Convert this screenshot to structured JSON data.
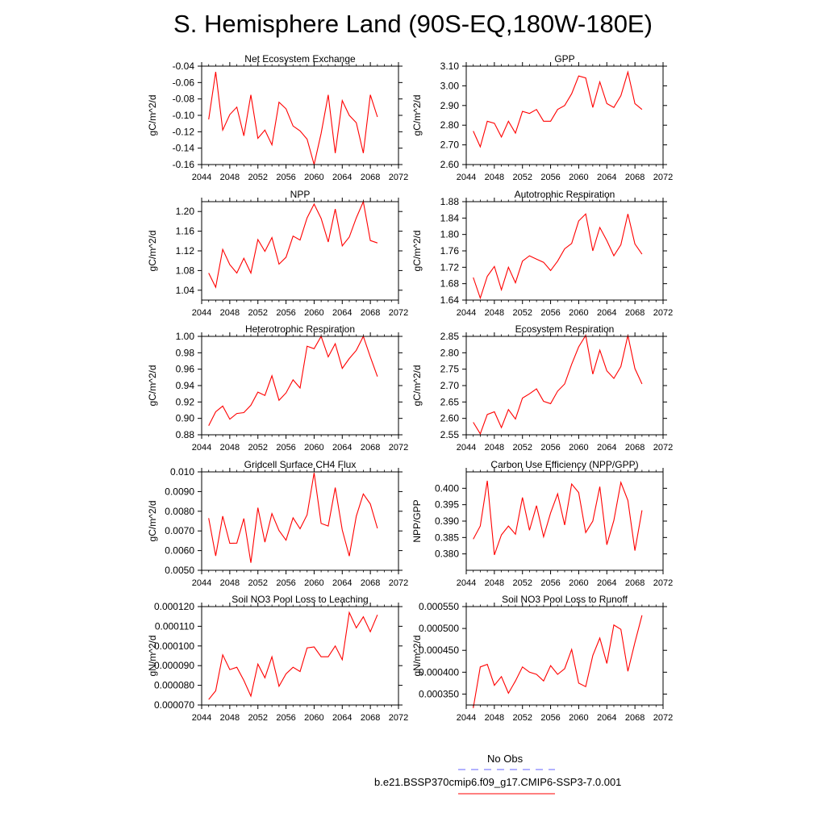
{
  "page": {
    "title": "S. Hemisphere Land (90S-EQ,180W-180E)"
  },
  "legend": {
    "obs_label": "No Obs",
    "model_label": "b.e21.BSSP370cmip6.f09_g17.CMIP6-SSP3-7.0.001",
    "obs_color": "#6666ff",
    "model_color": "#ff0000"
  },
  "chart_data": [
    {
      "type": "line",
      "title": "Net Ecosystem Exchange",
      "ylabel": "gC/m^2/d",
      "xlim": [
        2044,
        2072
      ],
      "xticks": [
        2044,
        2048,
        2052,
        2056,
        2060,
        2064,
        2068,
        2072
      ],
      "ylim": [
        -0.16,
        -0.04
      ],
      "yticks": [
        -0.16,
        -0.14,
        -0.12,
        -0.1,
        -0.08,
        -0.06,
        -0.04
      ],
      "ytick_labels": [
        "-0.16",
        "-0.14",
        "-0.12",
        "-0.10",
        "-0.08",
        "-0.06",
        "-0.04"
      ],
      "series": [
        {
          "color": "#ff0000",
          "x": [
            2045,
            2046,
            2047,
            2048,
            2049,
            2050,
            2051,
            2052,
            2053,
            2054,
            2055,
            2056,
            2057,
            2058,
            2059,
            2060,
            2061,
            2062,
            2063,
            2064,
            2065,
            2066,
            2067,
            2068,
            2069
          ],
          "y": [
            -0.105,
            -0.047,
            -0.118,
            -0.099,
            -0.09,
            -0.125,
            -0.075,
            -0.128,
            -0.118,
            -0.136,
            -0.084,
            -0.092,
            -0.113,
            -0.119,
            -0.129,
            -0.16,
            -0.122,
            -0.075,
            -0.146,
            -0.082,
            -0.1,
            -0.109,
            -0.146,
            -0.075,
            -0.102
          ]
        }
      ]
    },
    {
      "type": "line",
      "title": "GPP",
      "ylabel": "gC/m^2/d",
      "xlim": [
        2044,
        2072
      ],
      "xticks": [
        2044,
        2048,
        2052,
        2056,
        2060,
        2064,
        2068,
        2072
      ],
      "ylim": [
        2.6,
        3.1
      ],
      "yticks": [
        2.6,
        2.7,
        2.8,
        2.9,
        3.0,
        3.1
      ],
      "ytick_labels": [
        "2.60",
        "2.70",
        "2.80",
        "2.90",
        "3.00",
        "3.10"
      ],
      "series": [
        {
          "color": "#ff0000",
          "x": [
            2045,
            2046,
            2047,
            2048,
            2049,
            2050,
            2051,
            2052,
            2053,
            2054,
            2055,
            2056,
            2057,
            2058,
            2059,
            2060,
            2061,
            2062,
            2063,
            2064,
            2065,
            2066,
            2067,
            2068,
            2069
          ],
          "y": [
            2.77,
            2.69,
            2.82,
            2.81,
            2.74,
            2.82,
            2.76,
            2.87,
            2.86,
            2.88,
            2.82,
            2.82,
            2.88,
            2.9,
            2.96,
            3.05,
            3.04,
            2.89,
            3.02,
            2.91,
            2.89,
            2.95,
            3.07,
            2.91,
            2.88
          ]
        }
      ]
    },
    {
      "type": "line",
      "title": "NPP",
      "ylabel": "gC/m^2/d",
      "xlim": [
        2044,
        2072
      ],
      "xticks": [
        2044,
        2048,
        2052,
        2056,
        2060,
        2064,
        2068,
        2072
      ],
      "ylim": [
        1.02,
        1.22
      ],
      "yticks": [
        1.04,
        1.08,
        1.12,
        1.16,
        1.2
      ],
      "ytick_labels": [
        "1.04",
        "1.08",
        "1.12",
        "1.16",
        "1.20"
      ],
      "series": [
        {
          "color": "#ff0000",
          "x": [
            2045,
            2046,
            2047,
            2048,
            2049,
            2050,
            2051,
            2052,
            2053,
            2054,
            2055,
            2056,
            2057,
            2058,
            2059,
            2060,
            2061,
            2062,
            2063,
            2064,
            2065,
            2066,
            2067,
            2068,
            2069
          ],
          "y": [
            1.075,
            1.046,
            1.123,
            1.092,
            1.075,
            1.105,
            1.075,
            1.143,
            1.119,
            1.147,
            1.093,
            1.107,
            1.15,
            1.142,
            1.187,
            1.215,
            1.186,
            1.138,
            1.205,
            1.13,
            1.148,
            1.187,
            1.22,
            1.141,
            1.136
          ]
        }
      ]
    },
    {
      "type": "line",
      "title": "Autotrophic Respiration",
      "ylabel": "gC/m^2/d",
      "xlim": [
        2044,
        2072
      ],
      "xticks": [
        2044,
        2048,
        2052,
        2056,
        2060,
        2064,
        2068,
        2072
      ],
      "ylim": [
        1.64,
        1.88
      ],
      "yticks": [
        1.64,
        1.68,
        1.72,
        1.76,
        1.8,
        1.84,
        1.88
      ],
      "ytick_labels": [
        "1.64",
        "1.68",
        "1.72",
        "1.76",
        "1.80",
        "1.84",
        "1.88"
      ],
      "series": [
        {
          "color": "#ff0000",
          "x": [
            2045,
            2046,
            2047,
            2048,
            2049,
            2050,
            2051,
            2052,
            2053,
            2054,
            2055,
            2056,
            2057,
            2058,
            2059,
            2060,
            2061,
            2062,
            2063,
            2064,
            2065,
            2066,
            2067,
            2068,
            2069
          ],
          "y": [
            1.695,
            1.645,
            1.698,
            1.722,
            1.665,
            1.72,
            1.682,
            1.735,
            1.748,
            1.74,
            1.732,
            1.712,
            1.735,
            1.765,
            1.778,
            1.833,
            1.85,
            1.76,
            1.817,
            1.785,
            1.748,
            1.775,
            1.85,
            1.777,
            1.752
          ]
        }
      ]
    },
    {
      "type": "line",
      "title": "Heterotrophic Respiration",
      "ylabel": "gC/m^2/d",
      "xlim": [
        2044,
        2072
      ],
      "xticks": [
        2044,
        2048,
        2052,
        2056,
        2060,
        2064,
        2068,
        2072
      ],
      "ylim": [
        0.88,
        1.0
      ],
      "yticks": [
        0.88,
        0.9,
        0.92,
        0.94,
        0.96,
        0.98,
        1.0
      ],
      "ytick_labels": [
        "0.88",
        "0.90",
        "0.92",
        "0.94",
        "0.96",
        "0.98",
        "1.00"
      ],
      "series": [
        {
          "color": "#ff0000",
          "x": [
            2045,
            2046,
            2047,
            2048,
            2049,
            2050,
            2051,
            2052,
            2053,
            2054,
            2055,
            2056,
            2057,
            2058,
            2059,
            2060,
            2061,
            2062,
            2063,
            2064,
            2065,
            2066,
            2067,
            2068,
            2069
          ],
          "y": [
            0.891,
            0.908,
            0.915,
            0.899,
            0.906,
            0.907,
            0.916,
            0.932,
            0.928,
            0.952,
            0.922,
            0.931,
            0.947,
            0.937,
            0.988,
            0.985,
            1.0,
            0.975,
            0.991,
            0.961,
            0.973,
            0.983,
            1.0,
            0.975,
            0.951
          ]
        }
      ]
    },
    {
      "type": "line",
      "title": "Ecosystem Respiration",
      "ylabel": "gC/m^2/d",
      "xlim": [
        2044,
        2072
      ],
      "xticks": [
        2044,
        2048,
        2052,
        2056,
        2060,
        2064,
        2068,
        2072
      ],
      "ylim": [
        2.55,
        2.85
      ],
      "yticks": [
        2.55,
        2.6,
        2.65,
        2.7,
        2.75,
        2.8,
        2.85
      ],
      "ytick_labels": [
        "2.55",
        "2.60",
        "2.65",
        "2.70",
        "2.75",
        "2.80",
        "2.85"
      ],
      "series": [
        {
          "color": "#ff0000",
          "x": [
            2045,
            2046,
            2047,
            2048,
            2049,
            2050,
            2051,
            2052,
            2053,
            2054,
            2055,
            2056,
            2057,
            2058,
            2059,
            2060,
            2061,
            2062,
            2063,
            2064,
            2065,
            2066,
            2067,
            2068,
            2069
          ],
          "y": [
            2.588,
            2.553,
            2.612,
            2.62,
            2.572,
            2.627,
            2.598,
            2.662,
            2.675,
            2.69,
            2.652,
            2.645,
            2.683,
            2.705,
            2.765,
            2.818,
            2.853,
            2.735,
            2.808,
            2.745,
            2.722,
            2.758,
            2.853,
            2.752,
            2.705
          ]
        }
      ]
    },
    {
      "type": "line",
      "title": "Gridcell Surface CH4 Flux",
      "ylabel": "gC/m^2/d",
      "xlim": [
        2044,
        2072
      ],
      "xticks": [
        2044,
        2048,
        2052,
        2056,
        2060,
        2064,
        2068,
        2072
      ],
      "ylim": [
        0.005,
        0.01
      ],
      "yticks": [
        0.005,
        0.006,
        0.007,
        0.008,
        0.009,
        0.01
      ],
      "ytick_labels": [
        "0.0050",
        "0.0060",
        "0.0070",
        "0.0080",
        "0.0090",
        "0.010"
      ],
      "series": [
        {
          "color": "#ff0000",
          "x": [
            2045,
            2046,
            2047,
            2048,
            2049,
            2050,
            2051,
            2052,
            2053,
            2054,
            2055,
            2056,
            2057,
            2058,
            2059,
            2060,
            2061,
            2062,
            2063,
            2064,
            2065,
            2066,
            2067,
            2068,
            2069
          ],
          "y": [
            0.00765,
            0.00573,
            0.00775,
            0.00637,
            0.00638,
            0.00763,
            0.00538,
            0.00818,
            0.00643,
            0.00788,
            0.00702,
            0.00653,
            0.00767,
            0.00711,
            0.00782,
            0.00995,
            0.00738,
            0.00725,
            0.0092,
            0.00705,
            0.00572,
            0.00775,
            0.00888,
            0.00837,
            0.00713
          ]
        }
      ]
    },
    {
      "type": "line",
      "title": "Carbon Use Efficiency (NPP/GPP)",
      "ylabel": "NPP/GPP",
      "xlim": [
        2044,
        2072
      ],
      "xticks": [
        2044,
        2048,
        2052,
        2056,
        2060,
        2064,
        2068,
        2072
      ],
      "ylim": [
        0.375,
        0.405
      ],
      "yticks": [
        0.38,
        0.385,
        0.39,
        0.395,
        0.4
      ],
      "ytick_labels": [
        "0.380",
        "0.385",
        "0.390",
        "0.395",
        "0.400"
      ],
      "series": [
        {
          "color": "#ff0000",
          "x": [
            2045,
            2046,
            2047,
            2048,
            2049,
            2050,
            2051,
            2052,
            2053,
            2054,
            2055,
            2056,
            2057,
            2058,
            2059,
            2060,
            2061,
            2062,
            2063,
            2064,
            2065,
            2066,
            2067,
            2068,
            2069
          ],
          "y": [
            0.3845,
            0.3885,
            0.4023,
            0.3797,
            0.3858,
            0.3885,
            0.386,
            0.3972,
            0.3872,
            0.3947,
            0.3852,
            0.3925,
            0.3983,
            0.3888,
            0.4013,
            0.3987,
            0.3865,
            0.39,
            0.4005,
            0.3828,
            0.3902,
            0.4018,
            0.3963,
            0.381,
            0.3933
          ]
        }
      ]
    },
    {
      "type": "line",
      "title": "Soil NO3 Pool Loss to Leaching",
      "ylabel": "gN/m^2/d",
      "xlim": [
        2044,
        2072
      ],
      "xticks": [
        2044,
        2048,
        2052,
        2056,
        2060,
        2064,
        2068,
        2072
      ],
      "ylim": [
        7e-05,
        0.00012
      ],
      "yticks": [
        7e-05,
        8e-05,
        9e-05,
        0.0001,
        0.00011,
        0.00012
      ],
      "ytick_labels": [
        "0.000070",
        "0.000080",
        "0.000090",
        "0.000100",
        "0.000110",
        "0.000120"
      ],
      "series": [
        {
          "color": "#ff0000",
          "x": [
            2045,
            2046,
            2047,
            2048,
            2049,
            2050,
            2051,
            2052,
            2053,
            2054,
            2055,
            2056,
            2057,
            2058,
            2059,
            2060,
            2061,
            2062,
            2063,
            2064,
            2065,
            2066,
            2067,
            2068,
            2069
          ],
          "y": [
            7.28e-05,
            7.72e-05,
            9.55e-05,
            8.8e-05,
            8.92e-05,
            8.25e-05,
            7.45e-05,
            9.08e-05,
            8.38e-05,
            9.45e-05,
            7.95e-05,
            8.58e-05,
            8.92e-05,
            8.7e-05,
            9.9e-05,
            9.95e-05,
            9.45e-05,
            9.45e-05,
            0.0001,
            9.3e-05,
            0.000117,
            0.0001092,
            0.0001148,
            0.0001072,
            0.0001158
          ]
        }
      ]
    },
    {
      "type": "line",
      "title": "Soil NO3 Pool Loss to Runoff",
      "ylabel": "gN/m^2/d",
      "xlim": [
        2044,
        2072
      ],
      "xticks": [
        2044,
        2048,
        2052,
        2056,
        2060,
        2064,
        2068,
        2072
      ],
      "ylim": [
        0.000325,
        0.00055
      ],
      "yticks": [
        0.00035,
        0.0004,
        0.00045,
        0.0005,
        0.00055
      ],
      "ytick_labels": [
        "0.000350",
        "0.000400",
        "0.000450",
        "0.000500",
        "0.000550"
      ],
      "series": [
        {
          "color": "#ff0000",
          "x": [
            2045,
            2046,
            2047,
            2048,
            2049,
            2050,
            2051,
            2052,
            2053,
            2054,
            2055,
            2056,
            2057,
            2058,
            2059,
            2060,
            2061,
            2062,
            2063,
            2064,
            2065,
            2066,
            2067,
            2068,
            2069
          ],
          "y": [
            0.000318,
            0.000412,
            0.000418,
            0.00037,
            0.00039,
            0.000352,
            0.00038,
            0.000412,
            0.0004,
            0.000395,
            0.00038,
            0.000415,
            0.000395,
            0.000408,
            0.000452,
            0.000375,
            0.000367,
            0.000438,
            0.000478,
            0.00042,
            0.000508,
            0.000498,
            0.000402,
            0.000468,
            0.00053
          ]
        }
      ]
    }
  ]
}
